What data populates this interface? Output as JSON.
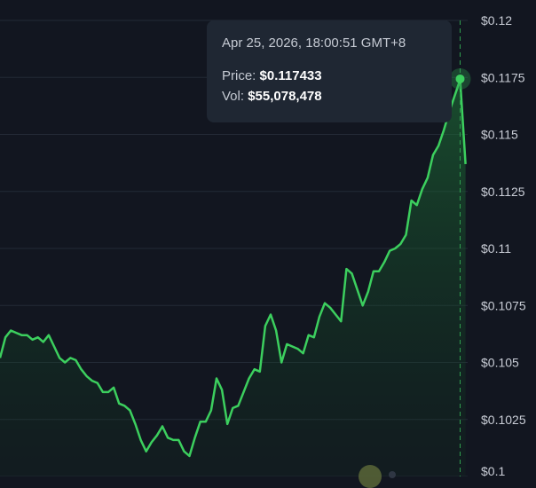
{
  "chart_data": {
    "type": "area",
    "ylim": [
      0.1,
      0.12
    ],
    "y_ticks": [
      "$0.12",
      "$0.1175",
      "$0.115",
      "$0.1125",
      "$0.11",
      "$0.1075",
      "$0.105",
      "$0.1025",
      "$0.1"
    ],
    "grid": true,
    "line_color": "#3ccf5e",
    "series": [
      {
        "values": [
          0.1052,
          0.1061,
          0.1064,
          0.1063,
          0.1062,
          0.1062,
          0.106,
          0.1061,
          0.1059,
          0.1062,
          0.1057,
          0.1052,
          0.105,
          0.1052,
          0.1051,
          0.1047,
          0.1044,
          0.1042,
          0.1041,
          0.1037,
          0.1037,
          0.1039,
          0.1032,
          0.1031,
          0.1029,
          0.1023,
          0.1016,
          0.1011,
          0.1015,
          0.1018,
          0.1022,
          0.1017,
          0.1016,
          0.1016,
          0.1011,
          0.1009,
          0.1017,
          0.1024,
          0.1024,
          0.1029,
          0.1043,
          0.1038,
          0.1023,
          0.103,
          0.1031,
          0.1037,
          0.1043,
          0.1047,
          0.1046,
          0.1066,
          0.1071,
          0.1064,
          0.105,
          0.1058,
          0.1057,
          0.1056,
          0.1054,
          0.1062,
          0.1061,
          0.107,
          0.1076,
          0.1074,
          0.1071,
          0.1068,
          0.1091,
          0.1089,
          0.1082,
          0.1075,
          0.1081,
          0.109,
          0.109,
          0.1094,
          0.1099,
          0.11,
          0.1102,
          0.1106,
          0.1121,
          0.1119,
          0.1126,
          0.1131,
          0.1141,
          0.1145,
          0.1152,
          0.116,
          0.1167,
          0.1174,
          0.1137
        ]
      }
    ],
    "highlight": {
      "index": 85,
      "value": 0.117433,
      "date": "Apr 25, 2026, 18:00:51 GMT+8",
      "price_label": "Price:",
      "price": "$0.117433",
      "vol_label": "Vol:",
      "vol": "$55,078,478"
    }
  }
}
